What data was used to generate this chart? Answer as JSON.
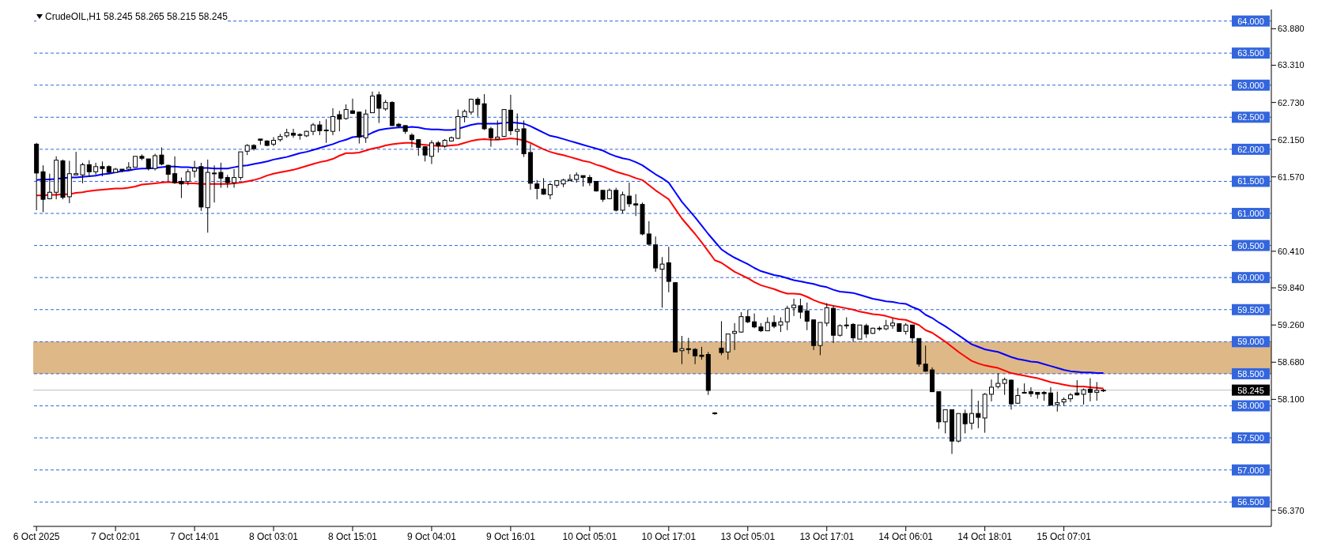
{
  "chart_data": {
    "type": "candlestick",
    "title": "CrudeOIL,H1  58.245 58.265 58.215 58.245",
    "categories": [
      "6 Oct 2025",
      null,
      null,
      null,
      null,
      null,
      null,
      null,
      null,
      null,
      null,
      null,
      "7 Oct 02:01",
      null,
      null,
      null,
      null,
      null,
      null,
      null,
      null,
      null,
      null,
      null,
      "7 Oct 14:01",
      null,
      null,
      null,
      null,
      null,
      null,
      null,
      null,
      null,
      null,
      null,
      "8 Oct 03:01",
      null,
      null,
      null,
      null,
      null,
      null,
      null,
      null,
      null,
      null,
      null,
      "8 Oct 15:01",
      null,
      null,
      null,
      null,
      null,
      null,
      null,
      null,
      null,
      null,
      null,
      "9 Oct 04:01",
      null,
      null,
      null,
      null,
      null,
      null,
      null,
      null,
      null,
      null,
      null,
      "9 Oct 16:01",
      null,
      null,
      null,
      null,
      null,
      null,
      null,
      null,
      null,
      null,
      null,
      "10 Oct 05:01",
      null,
      null,
      null,
      null,
      null,
      null,
      null,
      null,
      null,
      null,
      null,
      "10 Oct 17:01",
      null,
      null,
      null,
      null,
      null,
      null,
      null,
      null,
      null,
      null,
      null,
      "13 Oct 05:01",
      null,
      null,
      null,
      null,
      null,
      null,
      null,
      null,
      null,
      null,
      null,
      "13 Oct 17:01",
      null,
      null,
      null,
      null,
      null,
      null,
      null,
      null,
      null,
      null,
      null,
      "14 Oct 06:01",
      null,
      null,
      null,
      null,
      null,
      null,
      null,
      null,
      null,
      null,
      null,
      "14 Oct 18:01",
      null,
      null,
      null,
      null,
      null,
      null,
      null,
      null,
      null,
      null,
      null,
      "15 Oct 07:01",
      null,
      null,
      null,
      null,
      null,
      null,
      null,
      null,
      null,
      null,
      null,
      null,
      null,
      null,
      null,
      null,
      null,
      null,
      null,
      null,
      null,
      null,
      null,
      null,
      null,
      null,
      null,
      null,
      null,
      null,
      null
    ],
    "ohlc": [
      [
        62.08,
        62.1,
        61.05,
        61.63
      ],
      [
        61.65,
        61.75,
        61.02,
        61.22
      ],
      [
        61.23,
        61.62,
        61.22,
        61.33
      ],
      [
        61.33,
        61.89,
        61.22,
        61.83
      ],
      [
        61.82,
        61.84,
        61.22,
        61.25
      ],
      [
        61.26,
        61.82,
        61.16,
        61.62
      ],
      [
        61.6,
        61.96,
        61.6,
        61.62
      ],
      [
        61.6,
        61.79,
        61.47,
        61.76
      ],
      [
        61.76,
        61.83,
        61.58,
        61.65
      ],
      [
        61.65,
        61.79,
        61.6,
        61.73
      ],
      [
        61.73,
        61.81,
        61.58,
        61.7
      ],
      [
        61.73,
        61.75,
        61.63,
        61.64
      ],
      [
        61.64,
        61.71,
        61.63,
        61.69
      ],
      [
        61.69,
        61.69,
        61.64,
        61.67
      ],
      [
        61.69,
        61.8,
        61.67,
        61.72
      ],
      [
        61.72,
        61.89,
        61.72,
        61.89
      ],
      [
        61.89,
        61.92,
        61.83,
        61.86
      ],
      [
        61.85,
        61.85,
        61.67,
        61.7
      ],
      [
        61.7,
        61.93,
        61.67,
        61.9
      ],
      [
        61.91,
        62.03,
        61.75,
        61.77
      ],
      [
        61.75,
        61.76,
        61.5,
        61.61
      ],
      [
        61.62,
        61.89,
        61.46,
        61.48
      ],
      [
        61.5,
        61.56,
        61.24,
        61.46
      ],
      [
        61.5,
        61.69,
        61.44,
        61.65
      ],
      [
        61.66,
        61.82,
        61.56,
        61.71
      ],
      [
        61.73,
        61.79,
        61.04,
        61.1
      ],
      [
        61.09,
        61.84,
        60.7,
        61.64
      ],
      [
        61.63,
        61.75,
        61.17,
        61.63
      ],
      [
        61.64,
        61.79,
        61.4,
        61.55
      ],
      [
        61.56,
        61.6,
        61.4,
        61.48
      ],
      [
        61.48,
        61.69,
        61.4,
        61.56
      ],
      [
        61.56,
        61.96,
        61.52,
        61.96
      ],
      [
        61.97,
        62.08,
        61.91,
        62.06
      ],
      [
        62.06,
        62.08,
        61.98,
        62.01
      ],
      [
        62.16,
        62.16,
        62.07,
        62.14
      ],
      [
        62.13,
        62.14,
        62.05,
        62.06
      ],
      [
        62.08,
        62.19,
        62.05,
        62.14
      ],
      [
        62.15,
        62.24,
        62.12,
        62.2
      ],
      [
        62.21,
        62.32,
        62.18,
        62.26
      ],
      [
        62.25,
        62.32,
        62.18,
        62.22
      ],
      [
        62.23,
        62.25,
        62.15,
        62.22
      ],
      [
        62.21,
        62.29,
        62.19,
        62.28
      ],
      [
        62.28,
        62.41,
        62.22,
        62.38
      ],
      [
        62.38,
        62.44,
        62.22,
        62.29
      ],
      [
        62.3,
        62.47,
        62.1,
        62.29
      ],
      [
        62.28,
        62.64,
        62.22,
        62.51
      ],
      [
        62.54,
        62.6,
        62.28,
        62.47
      ],
      [
        62.48,
        62.7,
        62.46,
        62.62
      ],
      [
        62.6,
        62.79,
        62.55,
        62.56
      ],
      [
        62.58,
        62.58,
        62.09,
        62.19
      ],
      [
        62.18,
        62.62,
        62.1,
        62.55
      ],
      [
        62.57,
        62.9,
        62.57,
        62.83
      ],
      [
        62.85,
        62.9,
        62.41,
        62.64
      ],
      [
        62.63,
        62.77,
        62.6,
        62.73
      ],
      [
        62.73,
        62.75,
        62.36,
        62.37
      ],
      [
        62.39,
        62.41,
        62.33,
        62.36
      ],
      [
        62.37,
        62.37,
        62.24,
        62.28
      ],
      [
        62.22,
        62.25,
        62.03,
        62.15
      ],
      [
        62.15,
        62.15,
        61.9,
        62.03
      ],
      [
        62.04,
        62.05,
        61.81,
        61.91
      ],
      [
        61.89,
        62.14,
        61.77,
        62.1
      ],
      [
        62.1,
        62.13,
        61.95,
        62.06
      ],
      [
        62.05,
        62.16,
        62.02,
        62.14
      ],
      [
        62.13,
        62.2,
        62.12,
        62.18
      ],
      [
        62.17,
        62.62,
        62.16,
        62.51
      ],
      [
        62.51,
        62.62,
        62.42,
        62.59
      ],
      [
        62.58,
        62.79,
        62.54,
        62.78
      ],
      [
        62.78,
        62.81,
        62.51,
        62.7
      ],
      [
        62.71,
        62.86,
        62.3,
        62.32
      ],
      [
        62.32,
        62.35,
        62.04,
        62.18
      ],
      [
        62.16,
        62.45,
        62.15,
        62.19
      ],
      [
        62.2,
        62.62,
        62.19,
        62.62
      ],
      [
        62.61,
        62.85,
        62.22,
        62.29
      ],
      [
        62.28,
        62.56,
        62.06,
        62.31
      ],
      [
        62.32,
        62.45,
        61.88,
        61.93
      ],
      [
        61.95,
        62.08,
        61.37,
        61.47
      ],
      [
        61.46,
        61.52,
        61.22,
        61.39
      ],
      [
        61.38,
        61.55,
        61.29,
        61.3
      ],
      [
        61.29,
        61.48,
        61.22,
        61.45
      ],
      [
        61.44,
        61.52,
        61.4,
        61.51
      ],
      [
        61.46,
        61.54,
        61.41,
        61.52
      ],
      [
        61.51,
        61.61,
        61.51,
        61.53
      ],
      [
        61.53,
        61.64,
        61.48,
        61.6
      ],
      [
        61.59,
        61.59,
        61.42,
        61.56
      ],
      [
        61.56,
        61.6,
        61.43,
        61.48
      ],
      [
        61.5,
        61.5,
        61.34,
        61.35
      ],
      [
        61.36,
        61.36,
        61.18,
        61.22
      ],
      [
        61.23,
        61.39,
        61.22,
        61.36
      ],
      [
        61.36,
        61.4,
        61.03,
        61.05
      ],
      [
        61.05,
        61.34,
        61.0,
        61.29
      ],
      [
        61.27,
        61.48,
        61.1,
        61.15
      ],
      [
        61.15,
        61.3,
        60.96,
        61.13
      ],
      [
        61.14,
        61.17,
        60.66,
        60.68
      ],
      [
        60.68,
        60.88,
        60.5,
        60.52
      ],
      [
        60.51,
        60.64,
        60.09,
        60.15
      ],
      [
        60.13,
        60.32,
        59.53,
        60.21
      ],
      [
        60.23,
        60.48,
        59.77,
        59.94
      ],
      [
        59.92,
        59.93,
        58.84,
        58.84
      ],
      [
        58.86,
        59.09,
        58.65,
        58.89
      ],
      [
        58.89,
        59.06,
        58.81,
        58.88
      ],
      [
        58.88,
        58.9,
        58.65,
        58.78
      ],
      [
        58.79,
        58.92,
        58.72,
        58.77
      ],
      [
        58.8,
        58.84,
        58.17,
        58.24
      ],
      [
        57.89,
        57.9,
        57.86,
        57.88
      ],
      [
        58.9,
        59.32,
        58.79,
        58.83
      ],
      [
        58.84,
        59.12,
        58.72,
        59.12
      ],
      [
        59.13,
        59.29,
        58.87,
        59.16
      ],
      [
        59.15,
        59.46,
        59.14,
        59.39
      ],
      [
        59.39,
        59.5,
        59.29,
        59.31
      ],
      [
        59.31,
        59.44,
        59.21,
        59.23
      ],
      [
        59.23,
        59.29,
        59.15,
        59.17
      ],
      [
        59.17,
        59.38,
        59.17,
        59.3
      ],
      [
        59.3,
        59.41,
        59.21,
        59.24
      ],
      [
        59.26,
        59.38,
        59.15,
        59.31
      ],
      [
        59.31,
        59.56,
        59.18,
        59.52
      ],
      [
        59.53,
        59.67,
        59.4,
        59.57
      ],
      [
        59.56,
        59.67,
        59.36,
        59.46
      ],
      [
        59.48,
        59.61,
        59.18,
        59.32
      ],
      [
        59.34,
        59.34,
        58.87,
        58.94
      ],
      [
        58.94,
        59.3,
        58.79,
        59.3
      ],
      [
        59.29,
        59.6,
        59.24,
        59.53
      ],
      [
        59.52,
        59.56,
        58.98,
        59.1
      ],
      [
        59.1,
        59.27,
        59.08,
        59.25
      ],
      [
        59.26,
        59.38,
        59.2,
        59.26
      ],
      [
        59.27,
        59.29,
        59.0,
        59.06
      ],
      [
        59.04,
        59.26,
        59.04,
        59.26
      ],
      [
        59.25,
        59.28,
        59.06,
        59.12
      ],
      [
        59.13,
        59.22,
        59.12,
        59.21
      ],
      [
        59.21,
        59.24,
        59.17,
        59.21
      ],
      [
        59.2,
        59.34,
        59.18,
        59.25
      ],
      [
        59.25,
        59.36,
        59.2,
        59.29
      ],
      [
        59.28,
        59.29,
        59.16,
        59.16
      ],
      [
        59.16,
        59.29,
        59.11,
        59.26
      ],
      [
        59.26,
        59.26,
        58.98,
        59.06
      ],
      [
        59.05,
        59.05,
        58.61,
        58.65
      ],
      [
        58.65,
        58.94,
        58.53,
        58.54
      ],
      [
        58.56,
        58.6,
        58.22,
        58.22
      ],
      [
        58.22,
        58.22,
        57.64,
        57.75
      ],
      [
        57.75,
        57.94,
        57.57,
        57.94
      ],
      [
        57.94,
        57.94,
        57.25,
        57.45
      ],
      [
        57.45,
        57.88,
        57.43,
        57.88
      ],
      [
        57.88,
        57.94,
        57.57,
        57.72
      ],
      [
        57.73,
        58.26,
        57.63,
        57.88
      ],
      [
        57.88,
        58.08,
        57.65,
        57.82
      ],
      [
        57.81,
        58.2,
        57.58,
        58.18
      ],
      [
        58.18,
        58.41,
        58.07,
        58.29
      ],
      [
        58.3,
        58.51,
        58.27,
        58.35
      ],
      [
        58.35,
        58.44,
        58.17,
        58.41
      ],
      [
        58.4,
        58.41,
        57.94,
        58.03
      ],
      [
        58.04,
        58.28,
        58.03,
        58.16
      ],
      [
        58.21,
        58.35,
        58.19,
        58.21
      ],
      [
        58.22,
        58.29,
        58.14,
        58.19
      ],
      [
        58.21,
        58.21,
        58.11,
        58.18
      ],
      [
        58.21,
        58.23,
        58.08,
        58.19
      ],
      [
        58.2,
        58.29,
        58.0,
        58.01
      ],
      [
        58.02,
        58.22,
        57.91,
        58.05
      ],
      [
        58.06,
        58.13,
        58.0,
        58.1
      ],
      [
        58.11,
        58.2,
        58.06,
        58.17
      ],
      [
        58.2,
        58.4,
        58.16,
        58.17
      ],
      [
        58.18,
        58.27,
        58.02,
        58.25
      ],
      [
        58.26,
        58.43,
        58.07,
        58.21
      ],
      [
        58.21,
        58.37,
        58.08,
        58.24
      ],
      [
        58.245,
        58.265,
        58.215,
        58.245
      ],
      null,
      null,
      null,
      null,
      null,
      null,
      null,
      null,
      null,
      null,
      null,
      null,
      null,
      null,
      null,
      null,
      null,
      null,
      null,
      null,
      null,
      null,
      null,
      null,
      null
    ],
    "series": [
      {
        "type": "line",
        "color": "#0000ff",
        "values": [
          61.52,
          61.53,
          61.53,
          61.54,
          61.55,
          61.56,
          61.56,
          61.57,
          61.58,
          61.59,
          61.61,
          61.62,
          61.64,
          61.66,
          61.67,
          61.69,
          61.7,
          61.7,
          61.71,
          61.72,
          61.73,
          61.73,
          61.72,
          61.72,
          61.71,
          61.71,
          61.71,
          61.7,
          61.7,
          61.7,
          61.72,
          61.74,
          61.75,
          61.77,
          61.79,
          61.81,
          61.84,
          61.86,
          61.88,
          61.91,
          61.94,
          61.96,
          61.99,
          62.02,
          62.05,
          62.08,
          62.12,
          62.15,
          62.19,
          62.2,
          62.21,
          62.26,
          62.3,
          62.32,
          62.33,
          62.34,
          62.34,
          62.35,
          62.34,
          62.32,
          62.31,
          62.31,
          62.3,
          62.3,
          62.32,
          62.35,
          62.38,
          62.4,
          62.4,
          62.4,
          62.4,
          62.41,
          62.42,
          62.41,
          62.4,
          62.36,
          62.31,
          62.26,
          62.21,
          62.19,
          62.16,
          62.13,
          62.1,
          62.07,
          62.04,
          62.01,
          61.98,
          61.93,
          61.89,
          61.86,
          61.84,
          61.8,
          61.75,
          61.68,
          61.61,
          61.55,
          61.48,
          61.33,
          61.18,
          61.06,
          60.94,
          60.81,
          60.68,
          60.56,
          60.44,
          60.37,
          60.31,
          60.26,
          60.21,
          60.15,
          60.1,
          60.07,
          60.04,
          60.02,
          59.99,
          59.96,
          59.94,
          59.92,
          59.9,
          59.87,
          59.85,
          59.81,
          59.78,
          59.77,
          59.76,
          59.73,
          59.7,
          59.67,
          59.65,
          59.63,
          59.62,
          59.6,
          59.59,
          59.54,
          59.5,
          59.42,
          59.37,
          59.3,
          59.24,
          59.17,
          59.1,
          59.03,
          58.96,
          58.92,
          58.88,
          58.86,
          58.84,
          58.8,
          58.76,
          58.73,
          58.71,
          58.69,
          58.68,
          58.65,
          58.62,
          58.59,
          58.56,
          58.54,
          58.53,
          58.52,
          58.52,
          58.51,
          58.51,
          null,
          null,
          null,
          null,
          null,
          null,
          null,
          null,
          null,
          null,
          null,
          null,
          null,
          null,
          null,
          null,
          null,
          null,
          null,
          null,
          null,
          null,
          null,
          null,
          null
        ]
      },
      {
        "type": "line",
        "color": "#ff0000",
        "values": [
          61.28,
          61.28,
          61.29,
          61.29,
          61.3,
          61.3,
          61.32,
          61.33,
          61.35,
          61.36,
          61.37,
          61.38,
          61.39,
          61.39,
          61.4,
          61.42,
          61.45,
          61.46,
          61.47,
          61.48,
          61.49,
          61.48,
          61.48,
          61.47,
          61.47,
          61.46,
          61.46,
          61.46,
          61.46,
          61.46,
          61.47,
          61.48,
          61.5,
          61.52,
          61.55,
          61.59,
          61.62,
          61.64,
          61.66,
          61.68,
          61.71,
          61.74,
          61.77,
          61.8,
          61.82,
          61.85,
          61.9,
          61.94,
          61.94,
          61.95,
          61.98,
          62.01,
          62.03,
          62.06,
          62.08,
          62.09,
          62.1,
          62.1,
          62.08,
          62.07,
          62.06,
          62.05,
          62.05,
          62.06,
          62.07,
          62.1,
          62.13,
          62.15,
          62.16,
          62.15,
          62.15,
          62.16,
          62.17,
          62.16,
          62.14,
          62.1,
          62.05,
          62.0,
          61.96,
          61.93,
          61.91,
          61.88,
          61.85,
          61.82,
          61.8,
          61.76,
          61.73,
          61.69,
          61.65,
          61.62,
          61.59,
          61.55,
          61.52,
          61.44,
          61.36,
          61.29,
          61.22,
          61.07,
          60.92,
          60.8,
          60.68,
          60.55,
          60.41,
          60.27,
          60.23,
          60.16,
          60.09,
          60.04,
          59.99,
          59.93,
          59.88,
          59.85,
          59.82,
          59.78,
          59.75,
          59.75,
          59.74,
          59.7,
          59.65,
          59.61,
          59.58,
          59.56,
          59.54,
          59.52,
          59.5,
          59.47,
          59.45,
          59.43,
          59.42,
          59.4,
          59.37,
          59.35,
          59.34,
          59.3,
          59.26,
          59.18,
          59.14,
          59.07,
          59.0,
          58.92,
          58.84,
          58.77,
          58.7,
          58.66,
          58.63,
          58.61,
          58.59,
          58.55,
          58.51,
          58.49,
          58.47,
          58.45,
          58.43,
          58.4,
          58.37,
          58.35,
          58.33,
          58.31,
          58.3,
          58.3,
          58.29,
          58.28,
          58.27,
          null,
          null,
          null,
          null,
          null,
          null,
          null,
          null,
          null,
          null,
          null,
          null,
          null,
          null,
          null,
          null,
          null,
          null,
          null,
          null,
          null,
          null,
          null,
          null,
          null
        ]
      }
    ],
    "ylim": [
      56.12,
      64.18
    ],
    "yticks": [
      {
        "value": 63.88,
        "label": "63.880"
      },
      {
        "value": 63.31,
        "label": "63.310"
      },
      {
        "value": 62.73,
        "label": "62.730"
      },
      {
        "value": 62.15,
        "label": "62.150"
      },
      {
        "value": 61.57,
        "label": "61.570"
      },
      {
        "value": 60.41,
        "label": "60.410"
      },
      {
        "value": 59.84,
        "label": "59.840"
      },
      {
        "value": 59.26,
        "label": "59.260"
      },
      {
        "value": 58.68,
        "label": "58.680"
      },
      {
        "value": 58.1,
        "label": "58.100"
      },
      {
        "value": 56.37,
        "label": "56.370"
      }
    ],
    "bands": [
      {
        "axis": "y",
        "from": 58.5,
        "to": 59.0,
        "color": "#deb887"
      }
    ],
    "ref_lines": [
      {
        "axis": "y",
        "value": 64.0,
        "label": "64.000",
        "color": "#3366dd",
        "line_style": "dashed"
      },
      {
        "axis": "y",
        "value": 63.5,
        "label": "63.500",
        "color": "#3366dd",
        "line_style": "dashed"
      },
      {
        "axis": "y",
        "value": 63.0,
        "label": "63.000",
        "color": "#3366dd",
        "line_style": "dashed"
      },
      {
        "axis": "y",
        "value": 62.5,
        "label": "62.500",
        "color": "#3366dd",
        "line_style": "dashed"
      },
      {
        "axis": "y",
        "value": 62.0,
        "label": "62.000",
        "color": "#3366dd",
        "line_style": "dashed"
      },
      {
        "axis": "y",
        "value": 61.5,
        "label": "61.500",
        "color": "#3366dd",
        "line_style": "dashed"
      },
      {
        "axis": "y",
        "value": 61.0,
        "label": "61.000",
        "color": "#3366dd",
        "line_style": "dashed"
      },
      {
        "axis": "y",
        "value": 60.5,
        "label": "60.500",
        "color": "#3366dd",
        "line_style": "dashed"
      },
      {
        "axis": "y",
        "value": 60.0,
        "label": "60.000",
        "color": "#3366dd",
        "line_style": "dashed"
      },
      {
        "axis": "y",
        "value": 59.5,
        "label": "59.500",
        "color": "#3366dd",
        "line_style": "dashed"
      },
      {
        "axis": "y",
        "value": 59.0,
        "label": "59.000",
        "color": "#3366dd",
        "line_style": "dashed"
      },
      {
        "axis": "y",
        "value": 58.5,
        "label": "58.500",
        "color": "#3366dd",
        "line_style": "dashed"
      },
      {
        "axis": "y",
        "value": 58.0,
        "label": "58.000",
        "color": "#3366dd",
        "line_style": "dashed"
      },
      {
        "axis": "y",
        "value": 57.5,
        "label": "57.500",
        "color": "#3366dd",
        "line_style": "dashed"
      },
      {
        "axis": "y",
        "value": 57.0,
        "label": "57.000",
        "color": "#3366dd",
        "line_style": "dashed"
      },
      {
        "axis": "y",
        "value": 56.5,
        "label": "56.500",
        "color": "#3366dd",
        "line_style": "dashed"
      },
      {
        "axis": "y",
        "value": 58.245,
        "label": "58.245",
        "color": "#c0c0c0",
        "line_style": "solid"
      }
    ]
  }
}
